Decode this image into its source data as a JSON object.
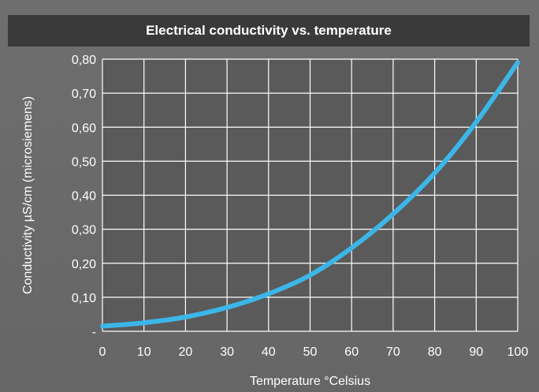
{
  "chart_data": {
    "type": "line",
    "title": "Electrical conductivity vs. temperature",
    "xlabel": "Temperature °Celsius",
    "ylabel": "Conductivity µS/cm (microsiemens)",
    "xlim": [
      0,
      100
    ],
    "ylim": [
      0,
      0.8
    ],
    "x_ticks": [
      0,
      10,
      20,
      30,
      40,
      50,
      60,
      70,
      80,
      90,
      100
    ],
    "x_tick_labels": [
      "0",
      "10",
      "20",
      "30",
      "40",
      "50",
      "60",
      "70",
      "80",
      "90",
      "100"
    ],
    "y_ticks": [
      0,
      0.1,
      0.2,
      0.3,
      0.4,
      0.5,
      0.6,
      0.7,
      0.8
    ],
    "y_tick_labels": [
      "-",
      "0,10",
      "0,20",
      "0,30",
      "0,40",
      "0,50",
      "0,60",
      "0,70",
      "0,80"
    ],
    "grid": true,
    "series": [
      {
        "x": [
          0,
          10,
          20,
          30,
          40,
          50,
          60,
          70,
          80,
          90,
          100
        ],
        "y": [
          0.015,
          0.025,
          0.042,
          0.07,
          0.11,
          0.165,
          0.245,
          0.345,
          0.465,
          0.615,
          0.79
        ]
      }
    ],
    "colors": {
      "line": "#3cb6e8",
      "grid": "#ffffff",
      "plot_background": "#5a5a5a",
      "title_bar": "#3a3a3a"
    }
  }
}
